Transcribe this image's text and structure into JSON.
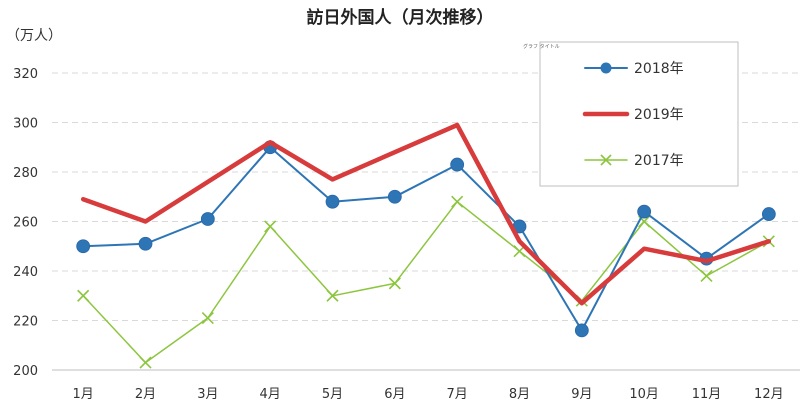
{
  "chart_data": {
    "type": "line",
    "title": "訪日外国人（月次推移）",
    "unit_label": "（万人）",
    "categories": [
      "1月",
      "2月",
      "3月",
      "4月",
      "5月",
      "6月",
      "7月",
      "8月",
      "9月",
      "10月",
      "11月",
      "12月"
    ],
    "ylim": [
      200,
      320
    ],
    "yticks": [
      200,
      220,
      240,
      260,
      280,
      300,
      320
    ],
    "grid": true,
    "grid_style": "dashed",
    "legend_position": "top-right",
    "legend_caption": "グラフ タイトル",
    "series": [
      {
        "name": "2018年",
        "color": "#2E75B6",
        "marker": "circle",
        "values": [
          250,
          251,
          261,
          290,
          268,
          270,
          283,
          258,
          216,
          264,
          245,
          263
        ]
      },
      {
        "name": "2019年",
        "color": "#D73B3B",
        "marker": "none",
        "values": [
          269,
          260,
          276,
          292,
          277,
          288,
          299,
          252,
          227,
          249,
          244,
          252
        ]
      },
      {
        "name": "2017年",
        "color": "#8CC63F",
        "marker": "x",
        "values": [
          230,
          203,
          221,
          258,
          230,
          235,
          268,
          248,
          228,
          260,
          238,
          252
        ]
      }
    ]
  }
}
